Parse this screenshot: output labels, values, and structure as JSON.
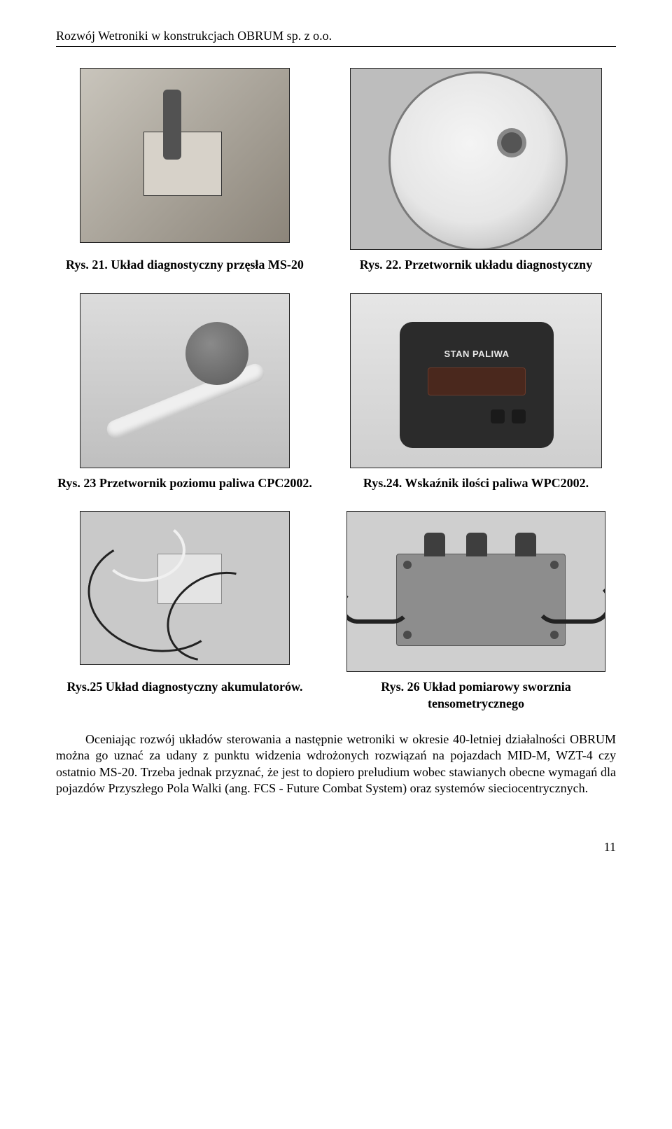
{
  "header": {
    "running_title": "Rozwój Wetroniki w konstrukcjach OBRUM sp. z o.o."
  },
  "figures": {
    "row1": {
      "left_caption": "Rys. 21. Układ diagnostyczny przęsła MS-20",
      "right_caption": "Rys. 22. Przetwornik układu diagnostyczny"
    },
    "row2": {
      "left_caption": "Rys. 23 Przetwornik poziomu paliwa CPC2002.",
      "right_caption": "Rys.24. Wskaźnik ilości paliwa WPC2002.",
      "gauge_label": "STAN PALIWA"
    },
    "row3": {
      "left_caption": "Rys.25 Układ diagnostyczny akumulatorów.",
      "right_caption": "Rys. 26 Układ pomiarowy sworznia tensometrycznego"
    }
  },
  "paragraph": "Oceniając rozwój układów sterowania a następnie wetroniki w okresie 40-letniej działalności OBRUM można go uznać za udany z punktu widzenia wdrożonych rozwiązań na pojazdach MID-M, WZT-4 czy ostatnio MS-20. Trzeba jednak przyznać, że jest to dopiero preludium wobec stawianych obecne wymagań dla pojazdów Przyszłego Pola Walki (ang. FCS - Future Combat System) oraz systemów sieciocentrycznych.",
  "page_number": "11"
}
